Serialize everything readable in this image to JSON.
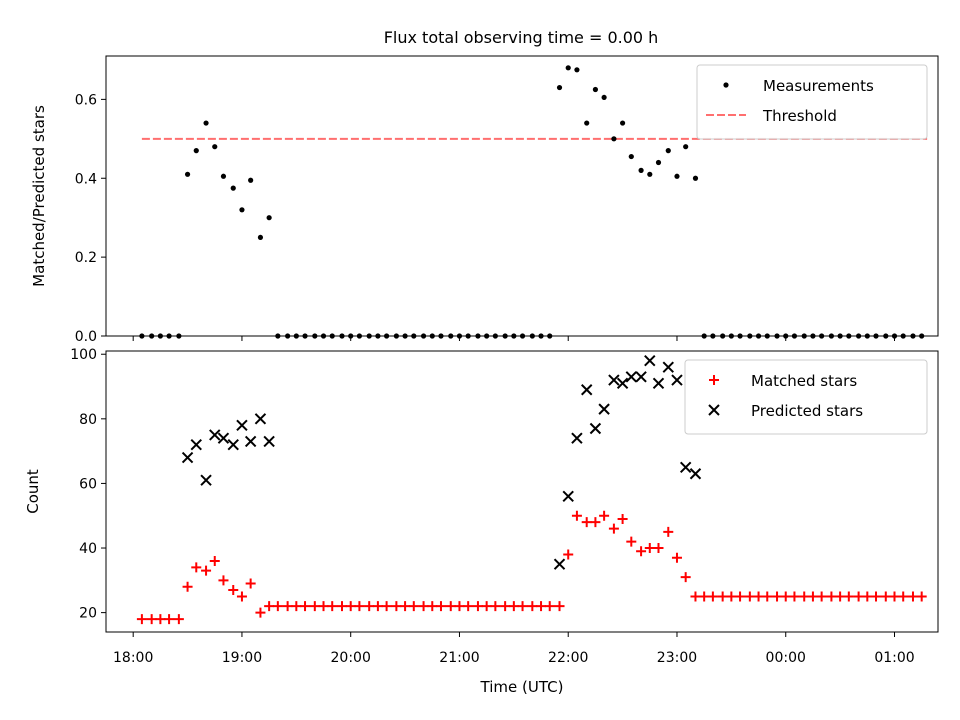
{
  "title": "Flux total observing time = 0.00 h",
  "chart_data": [
    {
      "type": "scatter",
      "ylabel": "Matched/Predicted stars",
      "xlim": [
        -0.25,
        7.4
      ],
      "ylim": [
        0.0,
        0.71
      ],
      "yticks": [
        0.0,
        0.2,
        0.4,
        0.6
      ],
      "ytick_labels": [
        "0.0",
        "0.2",
        "0.4",
        "0.6"
      ],
      "legend_position": "top-right",
      "threshold": {
        "name": "Threshold",
        "y": 0.5,
        "x_range": [
          0.08,
          7.3
        ],
        "color": "#ff6f6f"
      },
      "series": [
        {
          "name": "Measurements",
          "color": "#000000",
          "marker": "dot",
          "points": [
            [
              0.08,
              0.0
            ],
            [
              0.17,
              0.0
            ],
            [
              0.25,
              0.0
            ],
            [
              0.33,
              0.0
            ],
            [
              0.42,
              0.0
            ],
            [
              0.5,
              0.41
            ],
            [
              0.58,
              0.47
            ],
            [
              0.67,
              0.54
            ],
            [
              0.75,
              0.48
            ],
            [
              0.83,
              0.405
            ],
            [
              0.92,
              0.375
            ],
            [
              1.0,
              0.32
            ],
            [
              1.08,
              0.395
            ],
            [
              1.17,
              0.25
            ],
            [
              1.25,
              0.3
            ],
            [
              1.33,
              0.0
            ],
            [
              1.42,
              0.0
            ],
            [
              1.5,
              0.0
            ],
            [
              1.58,
              0.0
            ],
            [
              1.67,
              0.0
            ],
            [
              1.75,
              0.0
            ],
            [
              1.83,
              0.0
            ],
            [
              1.92,
              0.0
            ],
            [
              2.0,
              0.0
            ],
            [
              2.08,
              0.0
            ],
            [
              2.17,
              0.0
            ],
            [
              2.25,
              0.0
            ],
            [
              2.33,
              0.0
            ],
            [
              2.42,
              0.0
            ],
            [
              2.5,
              0.0
            ],
            [
              2.58,
              0.0
            ],
            [
              2.67,
              0.0
            ],
            [
              2.75,
              0.0
            ],
            [
              2.83,
              0.0
            ],
            [
              2.92,
              0.0
            ],
            [
              3.0,
              0.0
            ],
            [
              3.08,
              0.0
            ],
            [
              3.17,
              0.0
            ],
            [
              3.25,
              0.0
            ],
            [
              3.33,
              0.0
            ],
            [
              3.42,
              0.0
            ],
            [
              3.5,
              0.0
            ],
            [
              3.58,
              0.0
            ],
            [
              3.67,
              0.0
            ],
            [
              3.75,
              0.0
            ],
            [
              3.83,
              0.0
            ],
            [
              3.92,
              0.63
            ],
            [
              4.0,
              0.68
            ],
            [
              4.08,
              0.675
            ],
            [
              4.17,
              0.54
            ],
            [
              4.25,
              0.625
            ],
            [
              4.33,
              0.605
            ],
            [
              4.42,
              0.5
            ],
            [
              4.5,
              0.54
            ],
            [
              4.58,
              0.455
            ],
            [
              4.67,
              0.42
            ],
            [
              4.75,
              0.41
            ],
            [
              4.83,
              0.44
            ],
            [
              4.92,
              0.47
            ],
            [
              5.0,
              0.405
            ],
            [
              5.08,
              0.48
            ],
            [
              5.17,
              0.4
            ],
            [
              5.25,
              0.0
            ],
            [
              5.33,
              0.0
            ],
            [
              5.42,
              0.0
            ],
            [
              5.5,
              0.0
            ],
            [
              5.58,
              0.0
            ],
            [
              5.67,
              0.0
            ],
            [
              5.75,
              0.0
            ],
            [
              5.83,
              0.0
            ],
            [
              5.92,
              0.0
            ],
            [
              6.0,
              0.0
            ],
            [
              6.08,
              0.0
            ],
            [
              6.17,
              0.0
            ],
            [
              6.25,
              0.0
            ],
            [
              6.33,
              0.0
            ],
            [
              6.42,
              0.0
            ],
            [
              6.5,
              0.0
            ],
            [
              6.58,
              0.0
            ],
            [
              6.67,
              0.0
            ],
            [
              6.75,
              0.0
            ],
            [
              6.83,
              0.0
            ],
            [
              6.92,
              0.0
            ],
            [
              7.0,
              0.0
            ],
            [
              7.08,
              0.0
            ],
            [
              7.17,
              0.0
            ],
            [
              7.25,
              0.0
            ]
          ]
        }
      ]
    },
    {
      "type": "scatter",
      "xlabel": "Time (UTC)",
      "ylabel": "Count",
      "xlim": [
        -0.25,
        7.4
      ],
      "ylim": [
        14,
        101
      ],
      "xticks": [
        0,
        1,
        2,
        3,
        4,
        5,
        6,
        7
      ],
      "xtick_labels": [
        "18:00",
        "19:00",
        "20:00",
        "21:00",
        "22:00",
        "23:00",
        "00:00",
        "01:00"
      ],
      "yticks": [
        20,
        40,
        60,
        80,
        100
      ],
      "ytick_labels": [
        "20",
        "40",
        "60",
        "80",
        "100"
      ],
      "legend_position": "top-right",
      "series": [
        {
          "name": "Matched stars",
          "color": "#ff0000",
          "marker": "plus",
          "points": [
            [
              0.08,
              18
            ],
            [
              0.17,
              18
            ],
            [
              0.25,
              18
            ],
            [
              0.33,
              18
            ],
            [
              0.42,
              18
            ],
            [
              0.5,
              28
            ],
            [
              0.58,
              34
            ],
            [
              0.67,
              33
            ],
            [
              0.75,
              36
            ],
            [
              0.83,
              30
            ],
            [
              0.92,
              27
            ],
            [
              1.0,
              25
            ],
            [
              1.08,
              29
            ],
            [
              1.17,
              20
            ],
            [
              1.25,
              22
            ],
            [
              1.33,
              22
            ],
            [
              1.42,
              22
            ],
            [
              1.5,
              22
            ],
            [
              1.58,
              22
            ],
            [
              1.67,
              22
            ],
            [
              1.75,
              22
            ],
            [
              1.83,
              22
            ],
            [
              1.92,
              22
            ],
            [
              2.0,
              22
            ],
            [
              2.08,
              22
            ],
            [
              2.17,
              22
            ],
            [
              2.25,
              22
            ],
            [
              2.33,
              22
            ],
            [
              2.42,
              22
            ],
            [
              2.5,
              22
            ],
            [
              2.58,
              22
            ],
            [
              2.67,
              22
            ],
            [
              2.75,
              22
            ],
            [
              2.83,
              22
            ],
            [
              2.92,
              22
            ],
            [
              3.0,
              22
            ],
            [
              3.08,
              22
            ],
            [
              3.17,
              22
            ],
            [
              3.25,
              22
            ],
            [
              3.33,
              22
            ],
            [
              3.42,
              22
            ],
            [
              3.5,
              22
            ],
            [
              3.58,
              22
            ],
            [
              3.67,
              22
            ],
            [
              3.75,
              22
            ],
            [
              3.83,
              22
            ],
            [
              3.92,
              22
            ],
            [
              4.0,
              38
            ],
            [
              4.08,
              50
            ],
            [
              4.17,
              48
            ],
            [
              4.25,
              48
            ],
            [
              4.33,
              50
            ],
            [
              4.42,
              46
            ],
            [
              4.5,
              49
            ],
            [
              4.58,
              42
            ],
            [
              4.67,
              39
            ],
            [
              4.75,
              40
            ],
            [
              4.83,
              40
            ],
            [
              4.92,
              45
            ],
            [
              5.0,
              37
            ],
            [
              5.08,
              31
            ],
            [
              5.17,
              25
            ],
            [
              5.25,
              25
            ],
            [
              5.33,
              25
            ],
            [
              5.42,
              25
            ],
            [
              5.5,
              25
            ],
            [
              5.58,
              25
            ],
            [
              5.67,
              25
            ],
            [
              5.75,
              25
            ],
            [
              5.83,
              25
            ],
            [
              5.92,
              25
            ],
            [
              6.0,
              25
            ],
            [
              6.08,
              25
            ],
            [
              6.17,
              25
            ],
            [
              6.25,
              25
            ],
            [
              6.33,
              25
            ],
            [
              6.42,
              25
            ],
            [
              6.5,
              25
            ],
            [
              6.58,
              25
            ],
            [
              6.67,
              25
            ],
            [
              6.75,
              25
            ],
            [
              6.83,
              25
            ],
            [
              6.92,
              25
            ],
            [
              7.0,
              25
            ],
            [
              7.08,
              25
            ],
            [
              7.17,
              25
            ],
            [
              7.25,
              25
            ]
          ]
        },
        {
          "name": "Predicted stars",
          "color": "#000000",
          "marker": "x",
          "points": [
            [
              0.5,
              68
            ],
            [
              0.58,
              72
            ],
            [
              0.67,
              61
            ],
            [
              0.75,
              75
            ],
            [
              0.83,
              74
            ],
            [
              0.92,
              72
            ],
            [
              1.0,
              78
            ],
            [
              1.08,
              73
            ],
            [
              1.17,
              80
            ],
            [
              1.25,
              73
            ],
            [
              3.92,
              35
            ],
            [
              4.0,
              56
            ],
            [
              4.08,
              74
            ],
            [
              4.17,
              89
            ],
            [
              4.25,
              77
            ],
            [
              4.33,
              83
            ],
            [
              4.42,
              92
            ],
            [
              4.5,
              91
            ],
            [
              4.58,
              93
            ],
            [
              4.67,
              93
            ],
            [
              4.75,
              98
            ],
            [
              4.83,
              91
            ],
            [
              4.92,
              96
            ],
            [
              5.0,
              92
            ],
            [
              5.08,
              65
            ],
            [
              5.17,
              63
            ]
          ]
        }
      ]
    }
  ]
}
